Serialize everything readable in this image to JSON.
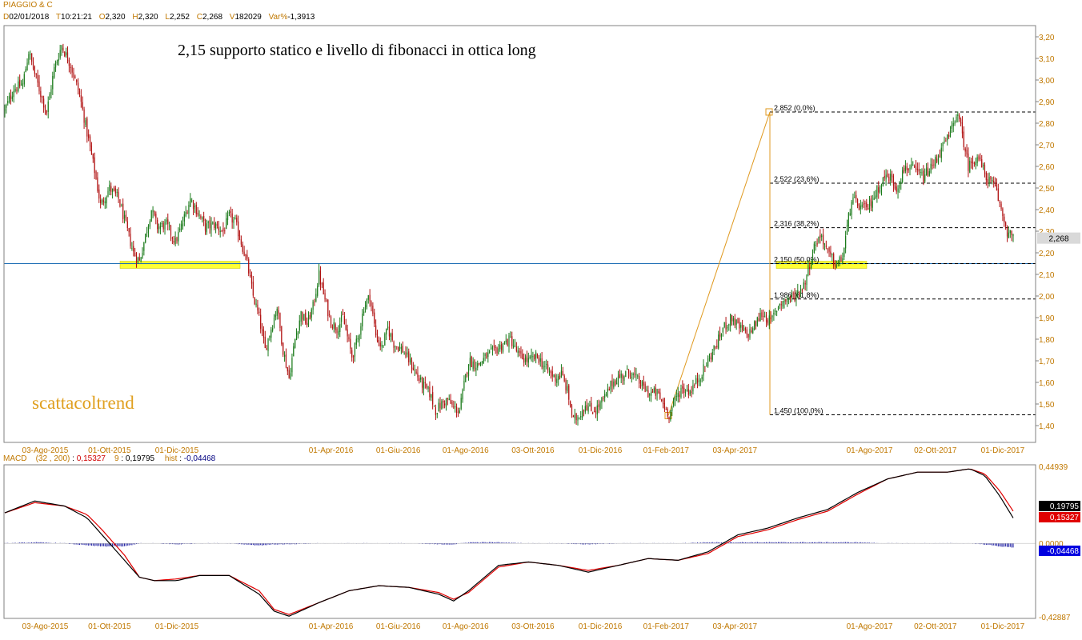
{
  "header": {
    "title": "PIAGGIO & C",
    "fields": [
      {
        "k": "D",
        "v": "02/01/2018"
      },
      {
        "k": "T",
        "v": "10:21:21"
      },
      {
        "k": "O",
        "v": "2,320"
      },
      {
        "k": "H",
        "v": "2,320"
      },
      {
        "k": "L",
        "v": "2,252"
      },
      {
        "k": "C",
        "v": "2,268"
      },
      {
        "k": "V",
        "v": "182029"
      },
      {
        "k": "Var%",
        "v": "-1,3913"
      }
    ]
  },
  "annotations": {
    "headline": "2,15 supporto statico e livello di fibonacci in ottica long",
    "watermark": "scattacoltrend"
  },
  "colors": {
    "axis_text": "#c07800",
    "bull": "#1a7a1a",
    "bear": "#b01010",
    "support_line": "#1f6fb5",
    "highlight": "#ffff33",
    "fib_line": "#e09a20",
    "macd_line": "#000000",
    "signal_line": "#e00000",
    "histogram": "#1a1aa0",
    "last_price_bg": "#d9d9d9"
  },
  "last_price_label": "2,268",
  "price_axis": {
    "min": 1.35,
    "max": 3.25,
    "ticks": [
      "3,20",
      "3,10",
      "3,00",
      "2,90",
      "2,80",
      "2,70",
      "2,60",
      "2,50",
      "2,40",
      "2,30",
      "2,20",
      "2,10",
      "2,00",
      "1,90",
      "1,80",
      "1,70",
      "1,60",
      "1,50",
      "1,40"
    ],
    "tick_values": [
      3.2,
      3.1,
      3.0,
      2.9,
      2.8,
      2.7,
      2.6,
      2.5,
      2.4,
      2.3,
      2.2,
      2.1,
      2.0,
      1.9,
      1.8,
      1.7,
      1.6,
      1.5,
      1.4
    ]
  },
  "date_labels": [
    "03-Ago-2015",
    "01-Ott-2015",
    "01-Dic-2015",
    "01-Apr-2016",
    "01-Giu-2016",
    "01-Ago-2016",
    "03-Ott-2016",
    "01-Dic-2016",
    "01-Feb-2017",
    "03-Apr-2017",
    "01-Ago-2017",
    "02-Ott-2017",
    "01-Dic-2017"
  ],
  "date_label_bars": [
    27,
    70,
    115,
    218,
    263,
    308,
    353,
    398,
    442,
    488,
    578,
    622,
    667
  ],
  "support_level": 2.15,
  "fibonacci": {
    "low": 1.45,
    "high": 2.852,
    "levels": [
      {
        "value": 2.852,
        "label": "2,852 (0,0%)"
      },
      {
        "value": 2.522,
        "label": "2,522 (23,6%)"
      },
      {
        "value": 2.316,
        "label": "2,316 (38,2%)"
      },
      {
        "value": 2.15,
        "label": "2,150 (50,0%)"
      },
      {
        "value": 1.986,
        "label": "1,986 (61,8%)"
      },
      {
        "value": 1.45,
        "label": "1,450 (100,0%)"
      }
    ]
  },
  "macd": {
    "label": "MACD",
    "params": "(32 , 200)",
    "macd_value": "0,15327",
    "signal_period": "9",
    "signal_value": "0,19795",
    "hist_label": "hist",
    "hist_value": "-0,04468",
    "axis_max_label": "0,44939",
    "axis_zero_label": "0,0000",
    "axis_min_label": "-0,42887",
    "axis_min": -0.42887,
    "axis_max": 0.44939
  },
  "chart_data": {
    "type": "candlestick",
    "title": "PIAGGIO & C",
    "n_bars": 700,
    "price_key_points": [
      [
        0,
        2.86
      ],
      [
        6,
        2.96
      ],
      [
        12,
        2.98
      ],
      [
        16,
        3.13
      ],
      [
        22,
        2.98
      ],
      [
        28,
        2.85
      ],
      [
        33,
        3.05
      ],
      [
        38,
        3.16
      ],
      [
        44,
        3.07
      ],
      [
        50,
        2.93
      ],
      [
        56,
        2.72
      ],
      [
        60,
        2.58
      ],
      [
        64,
        2.42
      ],
      [
        70,
        2.5
      ],
      [
        76,
        2.45
      ],
      [
        82,
        2.3
      ],
      [
        86,
        2.2
      ],
      [
        90,
        2.16
      ],
      [
        94,
        2.28
      ],
      [
        98,
        2.4
      ],
      [
        102,
        2.32
      ],
      [
        108,
        2.33
      ],
      [
        114,
        2.25
      ],
      [
        118,
        2.32
      ],
      [
        124,
        2.45
      ],
      [
        128,
        2.4
      ],
      [
        134,
        2.32
      ],
      [
        140,
        2.33
      ],
      [
        146,
        2.3
      ],
      [
        150,
        2.37
      ],
      [
        154,
        2.34
      ],
      [
        158,
        2.25
      ],
      [
        162,
        2.15
      ],
      [
        166,
        2.0
      ],
      [
        170,
        1.9
      ],
      [
        174,
        1.75
      ],
      [
        178,
        1.85
      ],
      [
        182,
        1.95
      ],
      [
        186,
        1.75
      ],
      [
        190,
        1.62
      ],
      [
        194,
        1.8
      ],
      [
        198,
        1.92
      ],
      [
        202,
        1.87
      ],
      [
        206,
        1.95
      ],
      [
        210,
        2.1
      ],
      [
        214,
        1.98
      ],
      [
        218,
        1.88
      ],
      [
        222,
        1.85
      ],
      [
        226,
        1.9
      ],
      [
        232,
        1.72
      ],
      [
        236,
        1.8
      ],
      [
        240,
        1.95
      ],
      [
        244,
        2.0
      ],
      [
        248,
        1.82
      ],
      [
        252,
        1.76
      ],
      [
        256,
        1.85
      ],
      [
        260,
        1.78
      ],
      [
        266,
        1.75
      ],
      [
        272,
        1.68
      ],
      [
        278,
        1.6
      ],
      [
        284,
        1.55
      ],
      [
        288,
        1.47
      ],
      [
        292,
        1.5
      ],
      [
        296,
        1.52
      ],
      [
        300,
        1.48
      ],
      [
        304,
        1.47
      ],
      [
        306,
        1.55
      ],
      [
        310,
        1.7
      ],
      [
        316,
        1.68
      ],
      [
        322,
        1.72
      ],
      [
        328,
        1.75
      ],
      [
        334,
        1.78
      ],
      [
        338,
        1.8
      ],
      [
        344,
        1.72
      ],
      [
        350,
        1.7
      ],
      [
        356,
        1.72
      ],
      [
        362,
        1.66
      ],
      [
        368,
        1.62
      ],
      [
        372,
        1.64
      ],
      [
        376,
        1.56
      ],
      [
        380,
        1.42
      ],
      [
        384,
        1.45
      ],
      [
        388,
        1.5
      ],
      [
        392,
        1.47
      ],
      [
        396,
        1.48
      ],
      [
        402,
        1.54
      ],
      [
        406,
        1.6
      ],
      [
        412,
        1.63
      ],
      [
        418,
        1.65
      ],
      [
        424,
        1.6
      ],
      [
        430,
        1.55
      ],
      [
        436,
        1.55
      ],
      [
        440,
        1.5
      ],
      [
        444,
        1.45
      ],
      [
        448,
        1.52
      ],
      [
        452,
        1.57
      ],
      [
        458,
        1.56
      ],
      [
        464,
        1.62
      ],
      [
        470,
        1.7
      ],
      [
        476,
        1.78
      ],
      [
        480,
        1.85
      ],
      [
        486,
        1.9
      ],
      [
        490,
        1.86
      ],
      [
        496,
        1.82
      ],
      [
        500,
        1.85
      ],
      [
        506,
        1.92
      ],
      [
        512,
        1.88
      ],
      [
        518,
        1.97
      ],
      [
        522,
        1.98
      ],
      [
        528,
        2.0
      ],
      [
        534,
        2.05
      ],
      [
        538,
        2.15
      ],
      [
        542,
        2.25
      ],
      [
        546,
        2.28
      ],
      [
        550,
        2.2
      ],
      [
        556,
        2.14
      ],
      [
        560,
        2.18
      ],
      [
        566,
        2.45
      ],
      [
        570,
        2.42
      ],
      [
        576,
        2.4
      ],
      [
        580,
        2.45
      ],
      [
        584,
        2.5
      ],
      [
        588,
        2.55
      ],
      [
        592,
        2.55
      ],
      [
        596,
        2.5
      ],
      [
        602,
        2.6
      ],
      [
        608,
        2.58
      ],
      [
        614,
        2.55
      ],
      [
        620,
        2.6
      ],
      [
        626,
        2.68
      ],
      [
        632,
        2.75
      ],
      [
        636,
        2.85
      ],
      [
        640,
        2.75
      ],
      [
        644,
        2.6
      ],
      [
        650,
        2.65
      ],
      [
        656,
        2.55
      ],
      [
        662,
        2.5
      ],
      [
        666,
        2.4
      ],
      [
        670,
        2.3
      ],
      [
        674,
        2.268
      ]
    ],
    "macd_key_points": [
      [
        0,
        0.18
      ],
      [
        20,
        0.25
      ],
      [
        40,
        0.22
      ],
      [
        55,
        0.15
      ],
      [
        65,
        0.05
      ],
      [
        80,
        -0.1
      ],
      [
        90,
        -0.2
      ],
      [
        100,
        -0.22
      ],
      [
        115,
        -0.22
      ],
      [
        130,
        -0.19
      ],
      [
        150,
        -0.19
      ],
      [
        170,
        -0.3
      ],
      [
        180,
        -0.4
      ],
      [
        190,
        -0.43
      ],
      [
        210,
        -0.35
      ],
      [
        230,
        -0.28
      ],
      [
        250,
        -0.25
      ],
      [
        270,
        -0.26
      ],
      [
        290,
        -0.3
      ],
      [
        300,
        -0.34
      ],
      [
        310,
        -0.28
      ],
      [
        330,
        -0.13
      ],
      [
        350,
        -0.11
      ],
      [
        370,
        -0.13
      ],
      [
        390,
        -0.17
      ],
      [
        410,
        -0.13
      ],
      [
        430,
        -0.09
      ],
      [
        450,
        -0.1
      ],
      [
        470,
        -0.05
      ],
      [
        490,
        0.05
      ],
      [
        510,
        0.09
      ],
      [
        530,
        0.15
      ],
      [
        550,
        0.2
      ],
      [
        570,
        0.3
      ],
      [
        590,
        0.38
      ],
      [
        610,
        0.42
      ],
      [
        630,
        0.42
      ],
      [
        645,
        0.44
      ],
      [
        655,
        0.4
      ],
      [
        665,
        0.28
      ],
      [
        674,
        0.15
      ]
    ],
    "signal_key_points": [
      [
        0,
        0.18
      ],
      [
        20,
        0.24
      ],
      [
        40,
        0.22
      ],
      [
        55,
        0.17
      ],
      [
        65,
        0.08
      ],
      [
        80,
        -0.07
      ],
      [
        90,
        -0.2
      ],
      [
        100,
        -0.22
      ],
      [
        115,
        -0.21
      ],
      [
        130,
        -0.19
      ],
      [
        150,
        -0.19
      ],
      [
        170,
        -0.28
      ],
      [
        180,
        -0.39
      ],
      [
        190,
        -0.42
      ],
      [
        210,
        -0.35
      ],
      [
        230,
        -0.28
      ],
      [
        250,
        -0.25
      ],
      [
        270,
        -0.26
      ],
      [
        290,
        -0.29
      ],
      [
        300,
        -0.33
      ],
      [
        310,
        -0.29
      ],
      [
        330,
        -0.14
      ],
      [
        350,
        -0.11
      ],
      [
        370,
        -0.13
      ],
      [
        390,
        -0.16
      ],
      [
        410,
        -0.13
      ],
      [
        430,
        -0.09
      ],
      [
        450,
        -0.1
      ],
      [
        470,
        -0.06
      ],
      [
        490,
        0.04
      ],
      [
        510,
        0.08
      ],
      [
        530,
        0.14
      ],
      [
        550,
        0.19
      ],
      [
        570,
        0.29
      ],
      [
        590,
        0.38
      ],
      [
        610,
        0.42
      ],
      [
        630,
        0.42
      ],
      [
        645,
        0.44
      ],
      [
        655,
        0.41
      ],
      [
        665,
        0.31
      ],
      [
        674,
        0.19
      ]
    ]
  }
}
